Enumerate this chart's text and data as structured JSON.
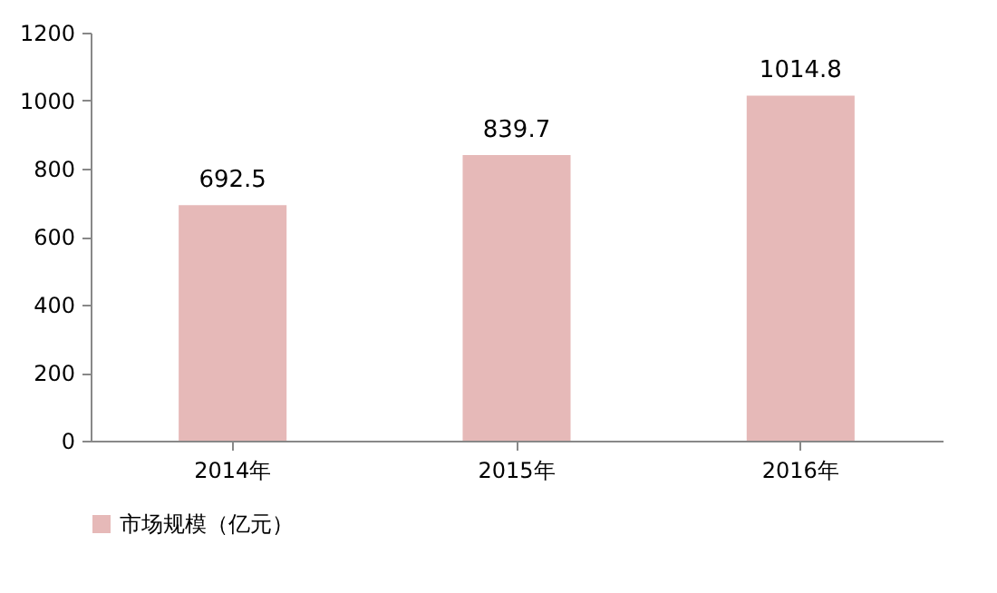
{
  "chart_data": {
    "type": "bar",
    "categories": [
      "2014年",
      "2015年",
      "2016年"
    ],
    "series": [
      {
        "name": "市场规模（亿元）",
        "color": "#e6b9b8",
        "values": [
          692.5,
          839.7,
          1014.8
        ]
      }
    ],
    "ylim": [
      0,
      1200
    ],
    "yticks": [
      0,
      200,
      400,
      600,
      800,
      1000,
      1200
    ],
    "data_labels": true,
    "legend": "bottom",
    "grid": false
  }
}
